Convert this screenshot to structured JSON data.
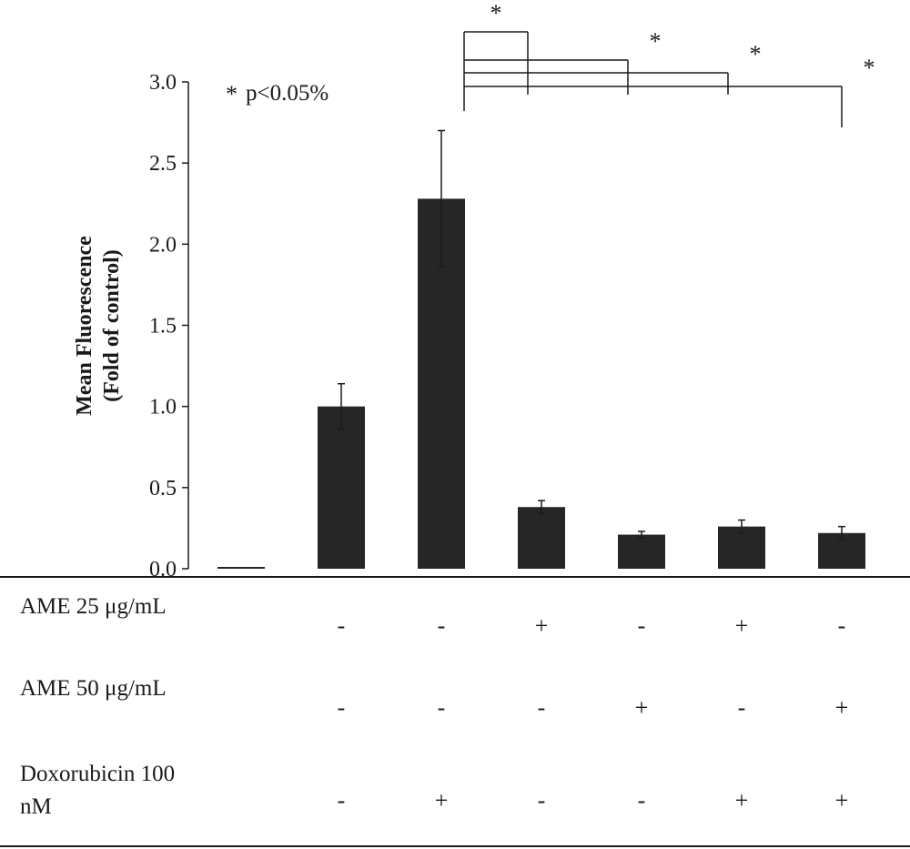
{
  "chart_data": {
    "type": "bar",
    "ylabel_lines": [
      "Mean Fluorescence",
      "(Fold of control)"
    ],
    "ylim": [
      0,
      3.0
    ],
    "yticks": [
      "0.0",
      "0.5",
      "1.0",
      "1.5",
      "2.0",
      "2.5",
      "3.0"
    ],
    "grid": false,
    "values": [
      0.0,
      1.0,
      2.28,
      0.38,
      0.21,
      0.26,
      0.22
    ],
    "errors": [
      0.0,
      0.14,
      0.42,
      0.04,
      0.02,
      0.04,
      0.04
    ],
    "bar_color": "#262626",
    "legend_note": "p<0.05%",
    "legend_marker": "*",
    "significance": [
      {
        "from_bar": 3,
        "to_bar": 4,
        "label": "*"
      },
      {
        "from_bar": 3,
        "to_bar": 5,
        "label": "*"
      },
      {
        "from_bar": 3,
        "to_bar": 6,
        "label": "*"
      },
      {
        "from_bar": 3,
        "to_bar": 7,
        "label": "*"
      }
    ],
    "treatments": [
      {
        "label_lines": [
          "AME 25 μg/mL"
        ],
        "signs": [
          "",
          "-",
          "-",
          "+",
          "-",
          "+",
          "-"
        ]
      },
      {
        "label_lines": [
          "AME 50 μg/mL"
        ],
        "signs": [
          "",
          "-",
          "-",
          "-",
          "+",
          "-",
          "+"
        ]
      },
      {
        "label_lines": [
          "Doxorubicin 100",
          "nM"
        ],
        "signs": [
          "",
          "-",
          "+",
          "-",
          "-",
          "+",
          "+"
        ]
      }
    ]
  }
}
